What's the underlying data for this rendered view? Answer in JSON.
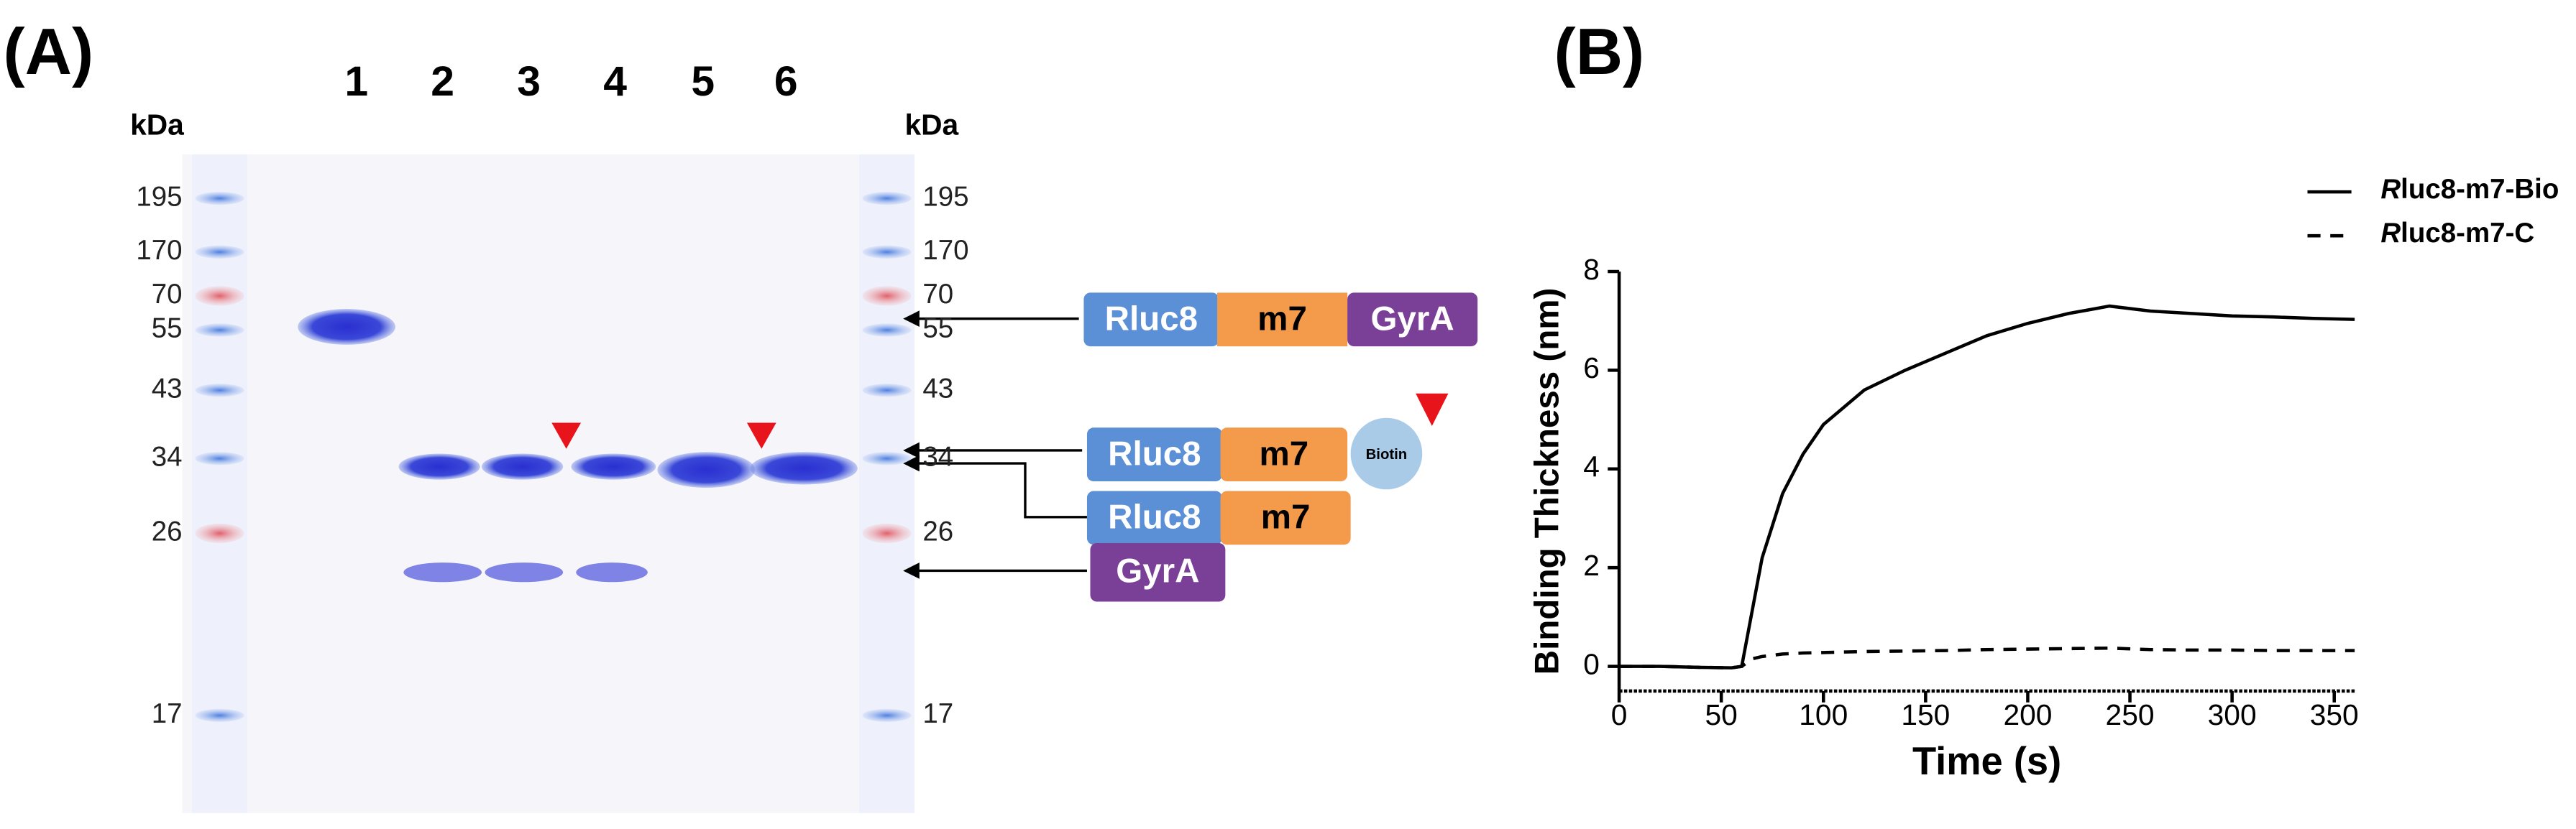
{
  "panel_a": {
    "label": "(A)",
    "kda_label_left": "kDa",
    "kda_label_right": "kDa",
    "markers": [
      195,
      170,
      70,
      55,
      43,
      34,
      26,
      17
    ],
    "lanes": [
      1,
      2,
      3,
      4,
      5,
      6
    ],
    "constructs": [
      [
        "Rluc8",
        "m7",
        "GyrA"
      ],
      [
        "Rluc8",
        "m7",
        "Biotin"
      ],
      [
        "Rluc8",
        "m7"
      ],
      [
        "GyrA"
      ]
    ]
  },
  "chart_data": {
    "type": "line",
    "panel_label": "(B)",
    "x_label": "Time (s)",
    "y_label": "Binding Thickness (nm)",
    "x": [
      0,
      20,
      40,
      55,
      60,
      65,
      70,
      80,
      90,
      100,
      120,
      140,
      160,
      180,
      200,
      220,
      240,
      260,
      280,
      300,
      320,
      340,
      360
    ],
    "series": [
      {
        "name": "Rluc8-m7-Bio",
        "color": "#000000",
        "dash": "solid",
        "values": [
          0,
          0,
          -0.02,
          -0.03,
          0,
          1.1,
          2.2,
          3.5,
          4.3,
          4.9,
          5.6,
          6.0,
          6.35,
          6.7,
          6.95,
          7.15,
          7.3,
          7.2,
          7.15,
          7.1,
          7.08,
          7.05,
          7.03
        ]
      },
      {
        "name": "Rluc8-m7-C",
        "color": "#000000",
        "dash": "dashed",
        "values": [
          0,
          0,
          -0.02,
          -0.03,
          0,
          0.15,
          0.2,
          0.25,
          0.27,
          0.28,
          0.3,
          0.31,
          0.32,
          0.34,
          0.35,
          0.36,
          0.37,
          0.34,
          0.33,
          0.33,
          0.32,
          0.32,
          0.32
        ]
      }
    ],
    "xlim": [
      0,
      360
    ],
    "xticks": [
      0,
      50,
      100,
      150,
      200,
      250,
      300,
      350
    ],
    "ylim": [
      -0.5,
      8
    ],
    "yticks": [
      0,
      2,
      4,
      6,
      8
    ],
    "grid": false,
    "legend": "top-right"
  }
}
